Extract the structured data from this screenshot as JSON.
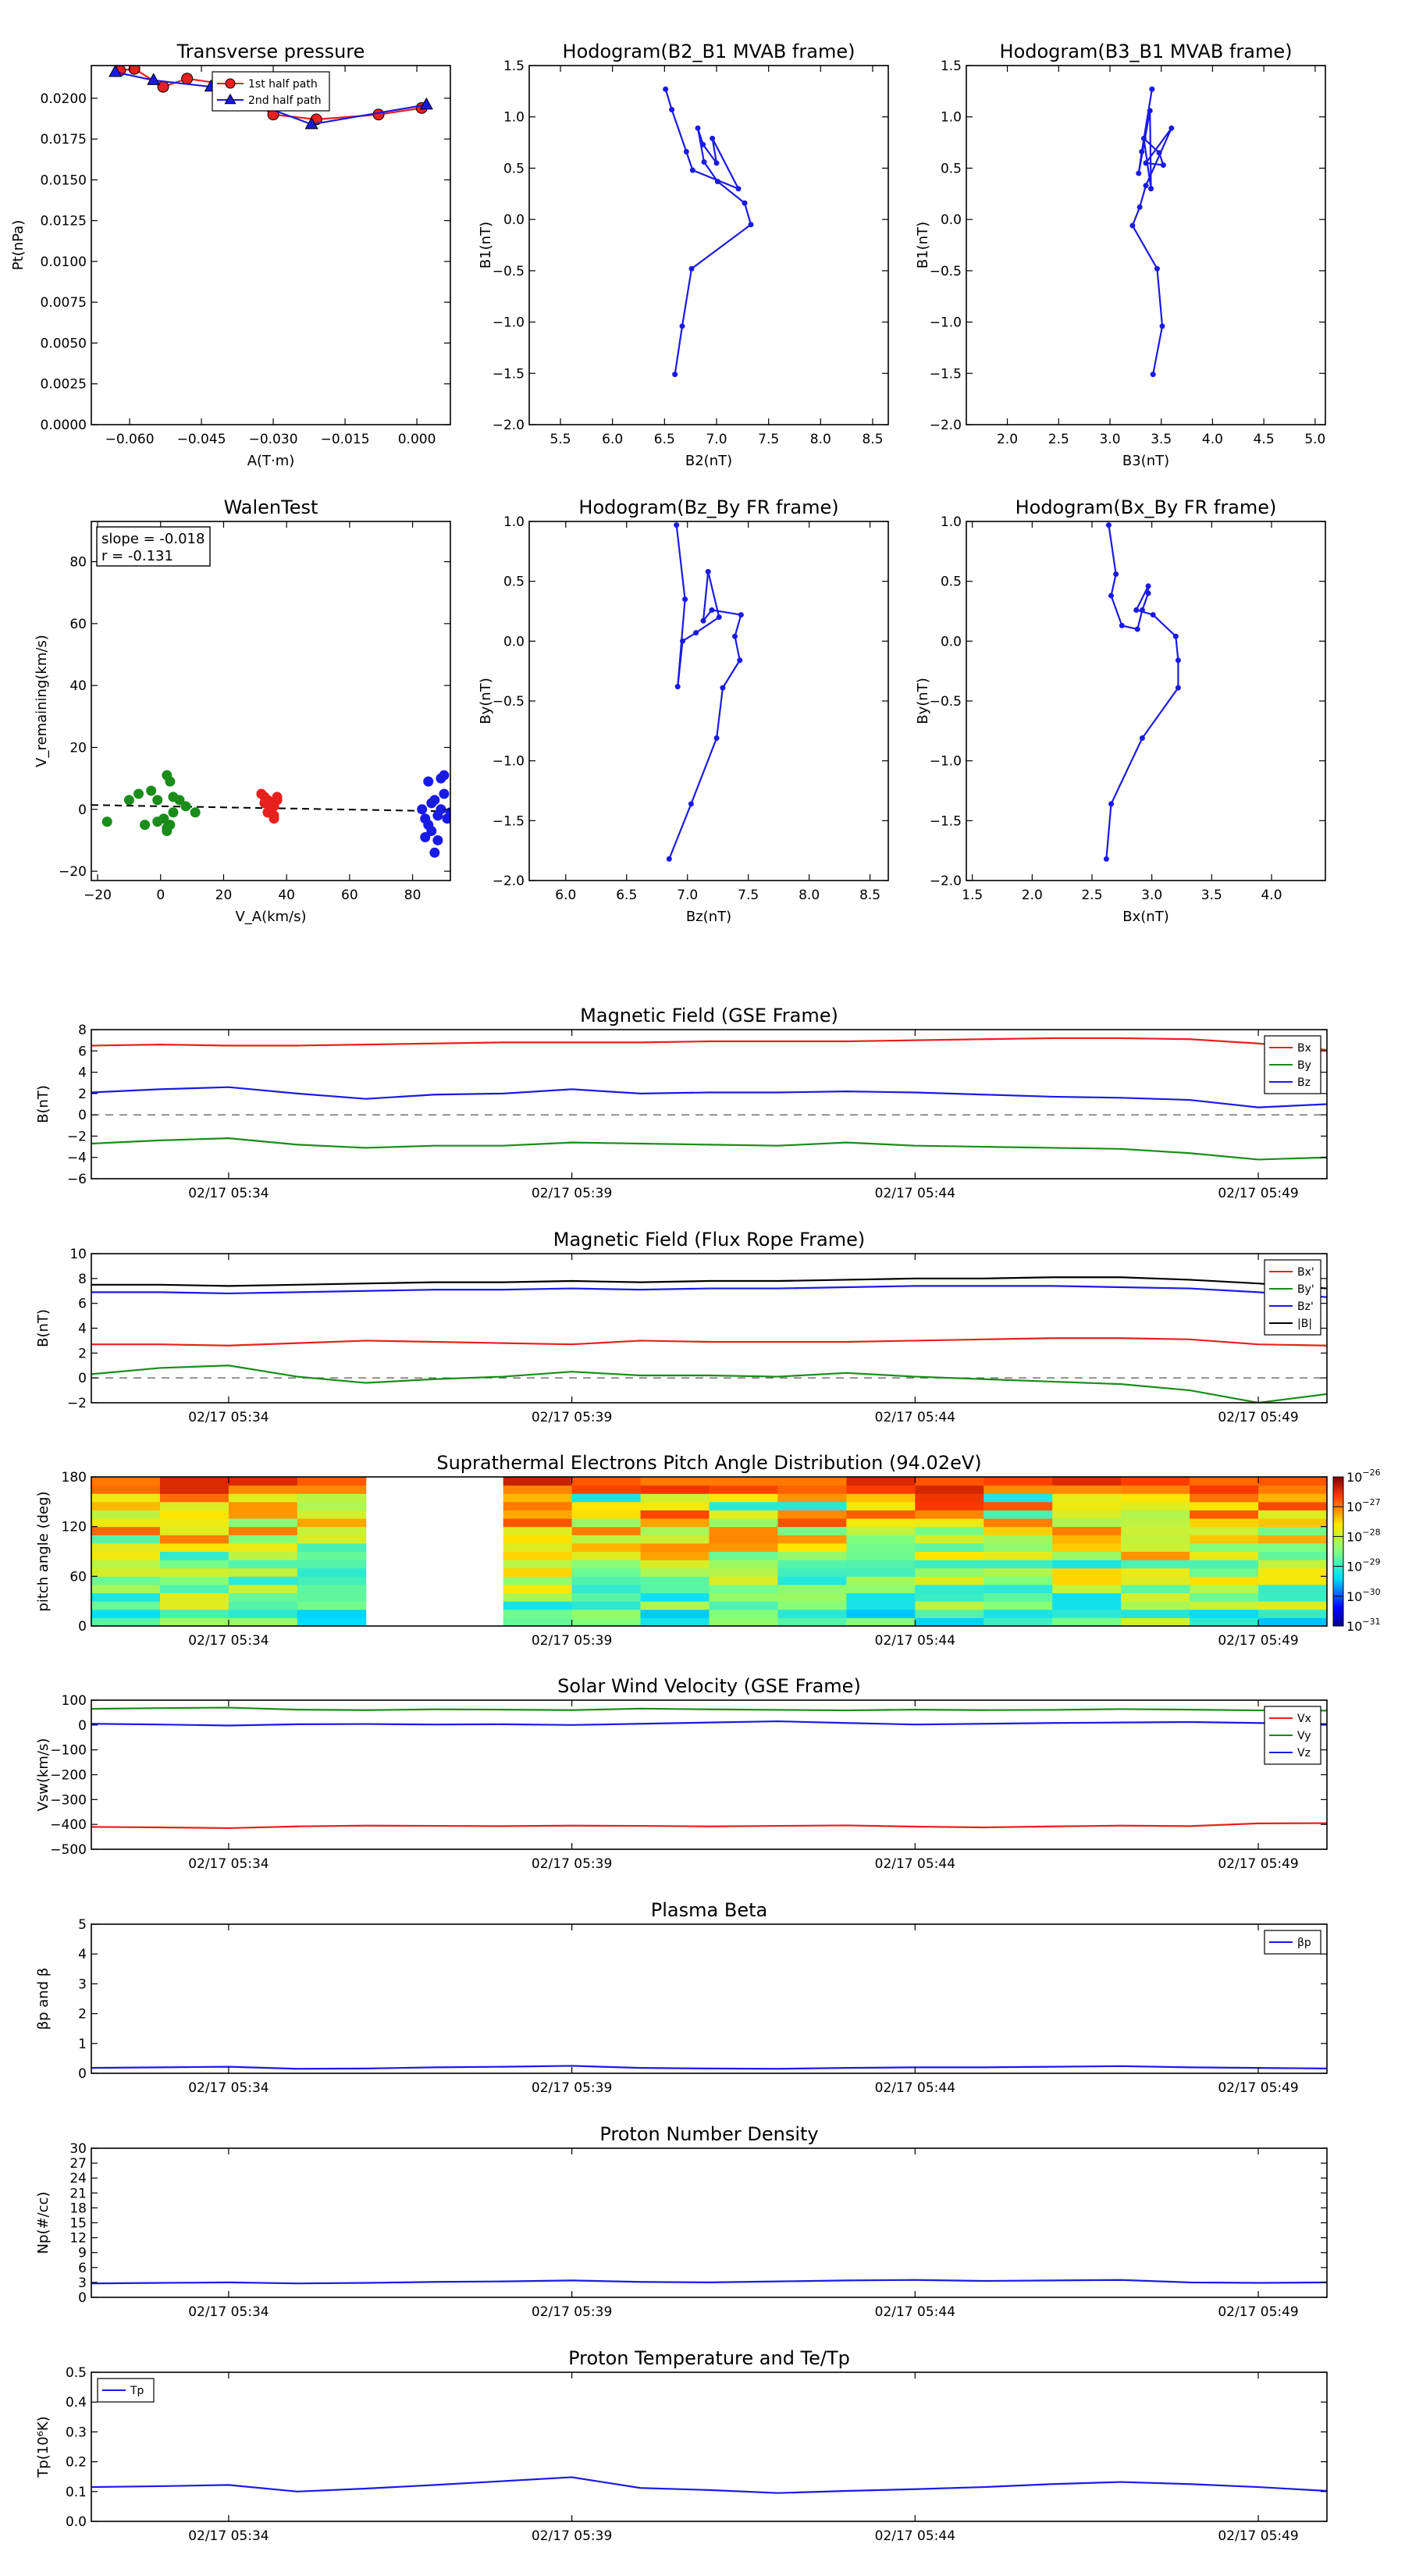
{
  "colors": {
    "red": "#e8201e",
    "green": "#1a8c1a",
    "blue": "#1a1ae6",
    "black": "#000000",
    "dash": "#666666"
  },
  "time_ticks": [
    "02/17 05:34",
    "02/17 05:39",
    "02/17 05:44",
    "02/17 05:49"
  ],
  "time_range": [
    0,
    18
  ],
  "time_tick_pos": [
    2,
    7,
    12,
    17
  ],
  "chart_data": [
    {
      "id": "tp",
      "type": "line",
      "title": "Transverse pressure",
      "xlabel": "A(T·m)",
      "ylabel": "Pt(nPa)",
      "xlim": [
        -0.068,
        0.007
      ],
      "ylim": [
        0,
        0.022
      ],
      "xticks": [
        -0.06,
        -0.045,
        -0.03,
        -0.015,
        0.0
      ],
      "xticklabels": [
        "−0.060",
        "−0.045",
        "−0.030",
        "−0.015",
        "0.000"
      ],
      "yticks": [
        0,
        0.0025,
        0.005,
        0.0075,
        0.01,
        0.0125,
        0.015,
        0.0175,
        0.02
      ],
      "yticklabels": [
        "0.0000",
        "0.0025",
        "0.0050",
        "0.0075",
        "0.0100",
        "0.0125",
        "0.0150",
        "0.0175",
        "0.0200"
      ],
      "legend": [
        "1st half path",
        "2nd half path"
      ],
      "series": [
        {
          "name": "1st half path",
          "marker": "circle",
          "color": "red",
          "x": [
            -0.062,
            -0.059,
            -0.053,
            -0.048,
            -0.041,
            -0.03,
            -0.021,
            -0.008,
            0.001
          ],
          "y": [
            0.0217,
            0.0218,
            0.0207,
            0.0212,
            0.0209,
            0.019,
            0.0187,
            0.019,
            0.0194
          ]
        },
        {
          "name": "2nd half path",
          "marker": "triangle",
          "color": "blue",
          "x": [
            -0.063,
            -0.055,
            -0.043,
            -0.022,
            0.002
          ],
          "y": [
            0.0216,
            0.0211,
            0.0207,
            0.0184,
            0.0196
          ]
        }
      ]
    },
    {
      "id": "h1",
      "type": "line",
      "title": "Hodogram(B2_B1 MVAB frame)",
      "xlabel": "B2(nT)",
      "ylabel": "B1(nT)",
      "xlim": [
        5.2,
        8.65
      ],
      "ylim": [
        -2.0,
        1.5
      ],
      "xticks": [
        5.5,
        6.0,
        6.5,
        7.0,
        7.5,
        8.0,
        8.5
      ],
      "xticklabels": [
        "5.5",
        "6.0",
        "6.5",
        "7.0",
        "7.5",
        "8.0",
        "8.5"
      ],
      "yticks": [
        -2.0,
        -1.5,
        -1.0,
        -0.5,
        0.0,
        0.5,
        1.0,
        1.5
      ],
      "yticklabels": [
        "−2.0",
        "−1.5",
        "−1.0",
        "−0.5",
        "0.0",
        "0.5",
        "1.0",
        "1.5"
      ],
      "series": [
        {
          "color": "blue",
          "x": [
            6.6,
            6.67,
            6.76,
            7.33,
            7.27,
            7.01,
            6.88,
            6.82,
            6.87,
            7.0,
            6.96,
            7.21,
            6.77,
            6.71,
            6.57,
            6.51
          ],
          "y": [
            -1.51,
            -1.04,
            -0.48,
            -0.05,
            0.16,
            0.37,
            0.56,
            0.89,
            0.73,
            0.55,
            0.79,
            0.3,
            0.48,
            0.66,
            1.07,
            1.27
          ]
        }
      ]
    },
    {
      "id": "h2",
      "type": "line",
      "title": "Hodogram(B3_B1 MVAB frame)",
      "xlabel": "B3(nT)",
      "ylabel": "B1(nT)",
      "xlim": [
        1.6,
        5.1
      ],
      "ylim": [
        -2.0,
        1.5
      ],
      "xticks": [
        2.0,
        2.5,
        3.0,
        3.5,
        4.0,
        4.5,
        5.0
      ],
      "xticklabels": [
        "2.0",
        "2.5",
        "3.0",
        "3.5",
        "4.0",
        "4.5",
        "5.0"
      ],
      "yticks": [
        -2.0,
        -1.5,
        -1.0,
        -0.5,
        0.0,
        0.5,
        1.0,
        1.5
      ],
      "yticklabels": [
        "−2.0",
        "−1.5",
        "−1.0",
        "−0.5",
        "0.0",
        "0.5",
        "1.0",
        "1.5"
      ],
      "series": [
        {
          "color": "blue",
          "x": [
            3.42,
            3.51,
            3.46,
            3.22,
            3.29,
            3.35,
            3.6,
            3.35,
            3.52,
            3.48,
            3.33,
            3.4,
            3.39,
            3.28,
            3.31,
            3.41
          ],
          "y": [
            -1.51,
            -1.04,
            -0.48,
            -0.06,
            0.12,
            0.33,
            0.89,
            0.55,
            0.53,
            0.65,
            0.79,
            0.3,
            1.06,
            0.45,
            0.66,
            1.27
          ]
        }
      ]
    },
    {
      "id": "walen",
      "type": "scatter",
      "title": "WalenTest",
      "xlabel": "V_A(km/s)",
      "ylabel": "V_remaining(km/s)",
      "xlim": [
        -22,
        92
      ],
      "ylim": [
        -23,
        93
      ],
      "xticks": [
        -20,
        0,
        20,
        40,
        60,
        80
      ],
      "xticklabels": [
        "−20",
        "0",
        "20",
        "40",
        "60",
        "80"
      ],
      "yticks": [
        -20,
        0,
        20,
        40,
        60,
        80
      ],
      "yticklabels": [
        "−20",
        "0",
        "20",
        "40",
        "60",
        "80"
      ],
      "annotation": [
        "slope = -0.018",
        "r = -0.131"
      ],
      "fit": {
        "slope": -0.018,
        "intercept": 1.0
      },
      "series": [
        {
          "color": "green",
          "x": [
            -17,
            -10,
            -7,
            -5,
            -3,
            -1,
            1,
            2,
            3,
            4,
            3,
            2,
            4,
            6,
            8,
            11,
            -1,
            2
          ],
          "y": [
            -4,
            3,
            5,
            -5,
            6,
            3,
            -3,
            11,
            9,
            -1,
            -5,
            -6,
            4,
            3,
            1,
            -1,
            -4,
            -7
          ]
        },
        {
          "color": "red",
          "x": [
            32,
            33,
            34,
            35,
            36,
            37,
            34,
            35,
            36,
            33,
            37,
            36,
            34
          ],
          "y": [
            5,
            4,
            3,
            2,
            1,
            3,
            -1,
            0,
            -2,
            2,
            4,
            -3,
            -1
          ]
        },
        {
          "color": "blue",
          "x": [
            83,
            84,
            85,
            86,
            87,
            88,
            89,
            90,
            91,
            92,
            85,
            86,
            88,
            90,
            84,
            87,
            89
          ],
          "y": [
            0,
            -3,
            9,
            -7,
            -14,
            -10,
            10,
            11,
            -3,
            -1,
            -5,
            2,
            -2,
            5,
            -9,
            3,
            0
          ]
        }
      ]
    },
    {
      "id": "h3",
      "type": "line",
      "title": "Hodogram(Bz_By FR frame)",
      "xlabel": "Bz(nT)",
      "ylabel": "By(nT)",
      "xlim": [
        5.7,
        8.65
      ],
      "ylim": [
        -2.0,
        1.0
      ],
      "xticks": [
        6.0,
        6.5,
        7.0,
        7.5,
        8.0,
        8.5
      ],
      "xticklabels": [
        "6.0",
        "6.5",
        "7.0",
        "7.5",
        "8.0",
        "8.5"
      ],
      "yticks": [
        -2.0,
        -1.5,
        -1.0,
        -0.5,
        0.0,
        0.5,
        1.0
      ],
      "yticklabels": [
        "−2.0",
        "−1.5",
        "−1.0",
        "−0.5",
        "0.0",
        "0.5",
        "1.0"
      ],
      "series": [
        {
          "color": "blue",
          "x": [
            6.85,
            7.03,
            7.24,
            7.29,
            7.43,
            7.39,
            7.44,
            7.2,
            7.13,
            7.17,
            7.26,
            7.07,
            6.96,
            6.92,
            6.98,
            6.91
          ],
          "y": [
            -1.82,
            -1.36,
            -0.81,
            -0.39,
            -0.16,
            0.04,
            0.22,
            0.26,
            0.17,
            0.58,
            0.2,
            0.07,
            0.0,
            -0.38,
            0.35,
            0.97
          ]
        }
      ]
    },
    {
      "id": "h4",
      "type": "line",
      "title": "Hodogram(Bx_By FR frame)",
      "xlabel": "Bx(nT)",
      "ylabel": "By(nT)",
      "xlim": [
        1.45,
        4.45
      ],
      "ylim": [
        -2.0,
        1.0
      ],
      "xticks": [
        1.5,
        2.0,
        2.5,
        3.0,
        3.5,
        4.0
      ],
      "xticklabels": [
        "1.5",
        "2.0",
        "2.5",
        "3.0",
        "3.5",
        "4.0"
      ],
      "yticks": [
        -2.0,
        -1.5,
        -1.0,
        -0.5,
        0.0,
        0.5,
        1.0
      ],
      "yticklabels": [
        "−2.0",
        "−1.5",
        "−1.0",
        "−0.5",
        "0.0",
        "0.5",
        "1.0"
      ],
      "series": [
        {
          "color": "blue",
          "x": [
            2.62,
            2.66,
            2.92,
            3.22,
            3.22,
            3.2,
            3.01,
            2.87,
            2.97,
            2.97,
            2.92,
            2.88,
            2.75,
            2.66,
            2.7,
            2.64
          ],
          "y": [
            -1.82,
            -1.36,
            -0.81,
            -0.39,
            -0.16,
            0.04,
            0.22,
            0.26,
            0.46,
            0.4,
            0.26,
            0.1,
            0.13,
            0.38,
            0.56,
            0.97
          ]
        }
      ]
    },
    {
      "id": "ts1",
      "type": "line",
      "title": "Magnetic Field (GSE Frame)",
      "ylabel": "B(nT)",
      "ylim": [
        -6,
        8
      ],
      "yticks": [
        -6,
        -4,
        -2,
        0,
        2,
        4,
        6,
        8
      ],
      "yticklabels": [
        "−6",
        "−4",
        "−2",
        "0",
        "2",
        "4",
        "6",
        "8"
      ],
      "zero_line": true,
      "legend_pos": "top-right",
      "series": [
        {
          "name": "Bx",
          "color": "red",
          "y": [
            6.5,
            6.6,
            6.5,
            6.5,
            6.6,
            6.7,
            6.8,
            6.8,
            6.8,
            6.9,
            6.9,
            6.9,
            7.0,
            7.1,
            7.2,
            7.2,
            7.1,
            6.7,
            6.1
          ]
        },
        {
          "name": "By",
          "color": "green",
          "y": [
            -2.7,
            -2.4,
            -2.2,
            -2.8,
            -3.1,
            -2.9,
            -2.9,
            -2.6,
            -2.7,
            -2.8,
            -2.9,
            -2.6,
            -2.9,
            -3.0,
            -3.1,
            -3.2,
            -3.6,
            -4.2,
            -4.0
          ]
        },
        {
          "name": "Bz",
          "color": "blue",
          "y": [
            2.1,
            2.4,
            2.6,
            2.0,
            1.5,
            1.9,
            2.0,
            2.4,
            2.0,
            2.1,
            2.1,
            2.2,
            2.1,
            1.9,
            1.7,
            1.6,
            1.4,
            0.7,
            1.0
          ]
        }
      ]
    },
    {
      "id": "ts2",
      "type": "line",
      "title": "Magnetic Field (Flux Rope Frame)",
      "ylabel": "B(nT)",
      "ylim": [
        -2,
        10
      ],
      "yticks": [
        -2,
        0,
        2,
        4,
        6,
        8,
        10
      ],
      "yticklabels": [
        "−2",
        "0",
        "2",
        "4",
        "6",
        "8",
        "10"
      ],
      "zero_line": true,
      "legend_pos": "top-right",
      "series": [
        {
          "name": "Bx'",
          "color": "red",
          "y": [
            2.7,
            2.7,
            2.6,
            2.8,
            3.0,
            2.9,
            2.8,
            2.7,
            3.0,
            2.9,
            2.9,
            2.9,
            3.0,
            3.1,
            3.2,
            3.2,
            3.1,
            2.7,
            2.6
          ]
        },
        {
          "name": "By'",
          "color": "green",
          "y": [
            0.3,
            0.8,
            1.0,
            0.1,
            -0.4,
            -0.1,
            0.1,
            0.5,
            0.2,
            0.2,
            0.1,
            0.4,
            0.1,
            -0.1,
            -0.3,
            -0.5,
            -1.0,
            -2.0,
            -1.3
          ]
        },
        {
          "name": "Bz'",
          "color": "blue",
          "y": [
            6.9,
            6.9,
            6.8,
            6.9,
            7.0,
            7.1,
            7.1,
            7.2,
            7.1,
            7.2,
            7.2,
            7.3,
            7.4,
            7.4,
            7.4,
            7.3,
            7.2,
            6.9,
            6.5
          ]
        },
        {
          "name": "|B|",
          "color": "black",
          "y": [
            7.5,
            7.5,
            7.4,
            7.5,
            7.6,
            7.7,
            7.7,
            7.8,
            7.7,
            7.8,
            7.8,
            7.9,
            8.0,
            8.0,
            8.1,
            8.1,
            7.9,
            7.6,
            7.2
          ]
        }
      ]
    },
    {
      "id": "pad",
      "type": "heatmap",
      "title": "Suprathermal Electrons Pitch Angle Distribution (94.02eV)",
      "ylabel": "pitch angle (deg)",
      "ylim": [
        0,
        180
      ],
      "yticks": [
        0,
        60,
        120,
        180
      ],
      "yticklabels": [
        "0",
        "60",
        "120",
        "180"
      ],
      "colorbar_labels": [
        "10−26",
        "10−27",
        "10−28",
        "10−29",
        "10−30",
        "10−31"
      ],
      "colorbar_exponents": [
        "-26",
        "-27",
        "-28",
        "-29",
        "-30",
        "-31"
      ],
      "colorbar_range": [
        -31,
        -26
      ],
      "missing_columns": [
        4,
        5
      ],
      "ncols": 18,
      "nrows": 18
    },
    {
      "id": "ts3",
      "type": "line",
      "title": "Solar Wind Velocity (GSE Frame)",
      "ylabel": "Vsw(km/s)",
      "ylim": [
        -500,
        100
      ],
      "yticks": [
        -500,
        -400,
        -300,
        -200,
        -100,
        0,
        100
      ],
      "yticklabels": [
        "−500",
        "−400",
        "−300",
        "−200",
        "−100",
        "0",
        "100"
      ],
      "legend_pos": "top-right",
      "series": [
        {
          "name": "Vx",
          "color": "red",
          "y": [
            -410,
            -412,
            -415,
            -408,
            -405,
            -406,
            -407,
            -405,
            -406,
            -408,
            -406,
            -404,
            -409,
            -412,
            -408,
            -405,
            -407,
            -396,
            -395
          ]
        },
        {
          "name": "Vy",
          "color": "green",
          "y": [
            65,
            68,
            70,
            62,
            60,
            63,
            62,
            60,
            66,
            63,
            61,
            59,
            62,
            60,
            61,
            64,
            62,
            59,
            58
          ]
        },
        {
          "name": "Vz",
          "color": "blue",
          "y": [
            5,
            2,
            -2,
            3,
            4,
            2,
            3,
            0,
            5,
            10,
            15,
            8,
            2,
            5,
            8,
            10,
            12,
            8,
            4
          ]
        }
      ]
    },
    {
      "id": "ts4",
      "type": "line",
      "title": "Plasma Beta",
      "ylabel": "βp and β",
      "ylim": [
        0,
        5
      ],
      "yticks": [
        0,
        1,
        2,
        3,
        4,
        5
      ],
      "yticklabels": [
        "0",
        "1",
        "2",
        "3",
        "4",
        "5"
      ],
      "legend_pos": "top-right",
      "legend_label": "βp",
      "series": [
        {
          "name": "βp",
          "color": "blue",
          "y": [
            0.18,
            0.2,
            0.22,
            0.15,
            0.16,
            0.2,
            0.22,
            0.25,
            0.18,
            0.16,
            0.15,
            0.18,
            0.2,
            0.2,
            0.22,
            0.24,
            0.2,
            0.18,
            0.16
          ]
        }
      ]
    },
    {
      "id": "ts5",
      "type": "line",
      "title": "Proton Number Density",
      "ylabel": "Np(#/cc)",
      "ylim": [
        0,
        30
      ],
      "yticks": [
        0,
        3,
        6,
        9,
        12,
        15,
        18,
        21,
        24,
        27,
        30
      ],
      "yticklabels": [
        "0",
        "3",
        "6",
        "9",
        "12",
        "15",
        "18",
        "21",
        "24",
        "27",
        "30"
      ],
      "series": [
        {
          "color": "blue",
          "y": [
            2.8,
            2.9,
            3.0,
            2.8,
            2.9,
            3.1,
            3.2,
            3.4,
            3.1,
            3.0,
            3.2,
            3.4,
            3.5,
            3.3,
            3.4,
            3.5,
            3.0,
            2.9,
            3.0
          ]
        }
      ]
    },
    {
      "id": "ts6",
      "type": "line",
      "title": "Proton Temperature and Te/Tp",
      "ylabel": "Tp(10⁶K)",
      "ylim": [
        0,
        0.5
      ],
      "yticks": [
        0,
        0.1,
        0.2,
        0.3,
        0.4,
        0.5
      ],
      "yticklabels": [
        "0.0",
        "0.1",
        "0.2",
        "0.3",
        "0.4",
        "0.5"
      ],
      "legend_pos": "top-left",
      "series": [
        {
          "name": "Tp",
          "color": "blue",
          "y": [
            0.115,
            0.118,
            0.122,
            0.1,
            0.11,
            0.122,
            0.135,
            0.148,
            0.112,
            0.105,
            0.095,
            0.102,
            0.108,
            0.115,
            0.125,
            0.132,
            0.125,
            0.115,
            0.102
          ]
        }
      ]
    }
  ]
}
